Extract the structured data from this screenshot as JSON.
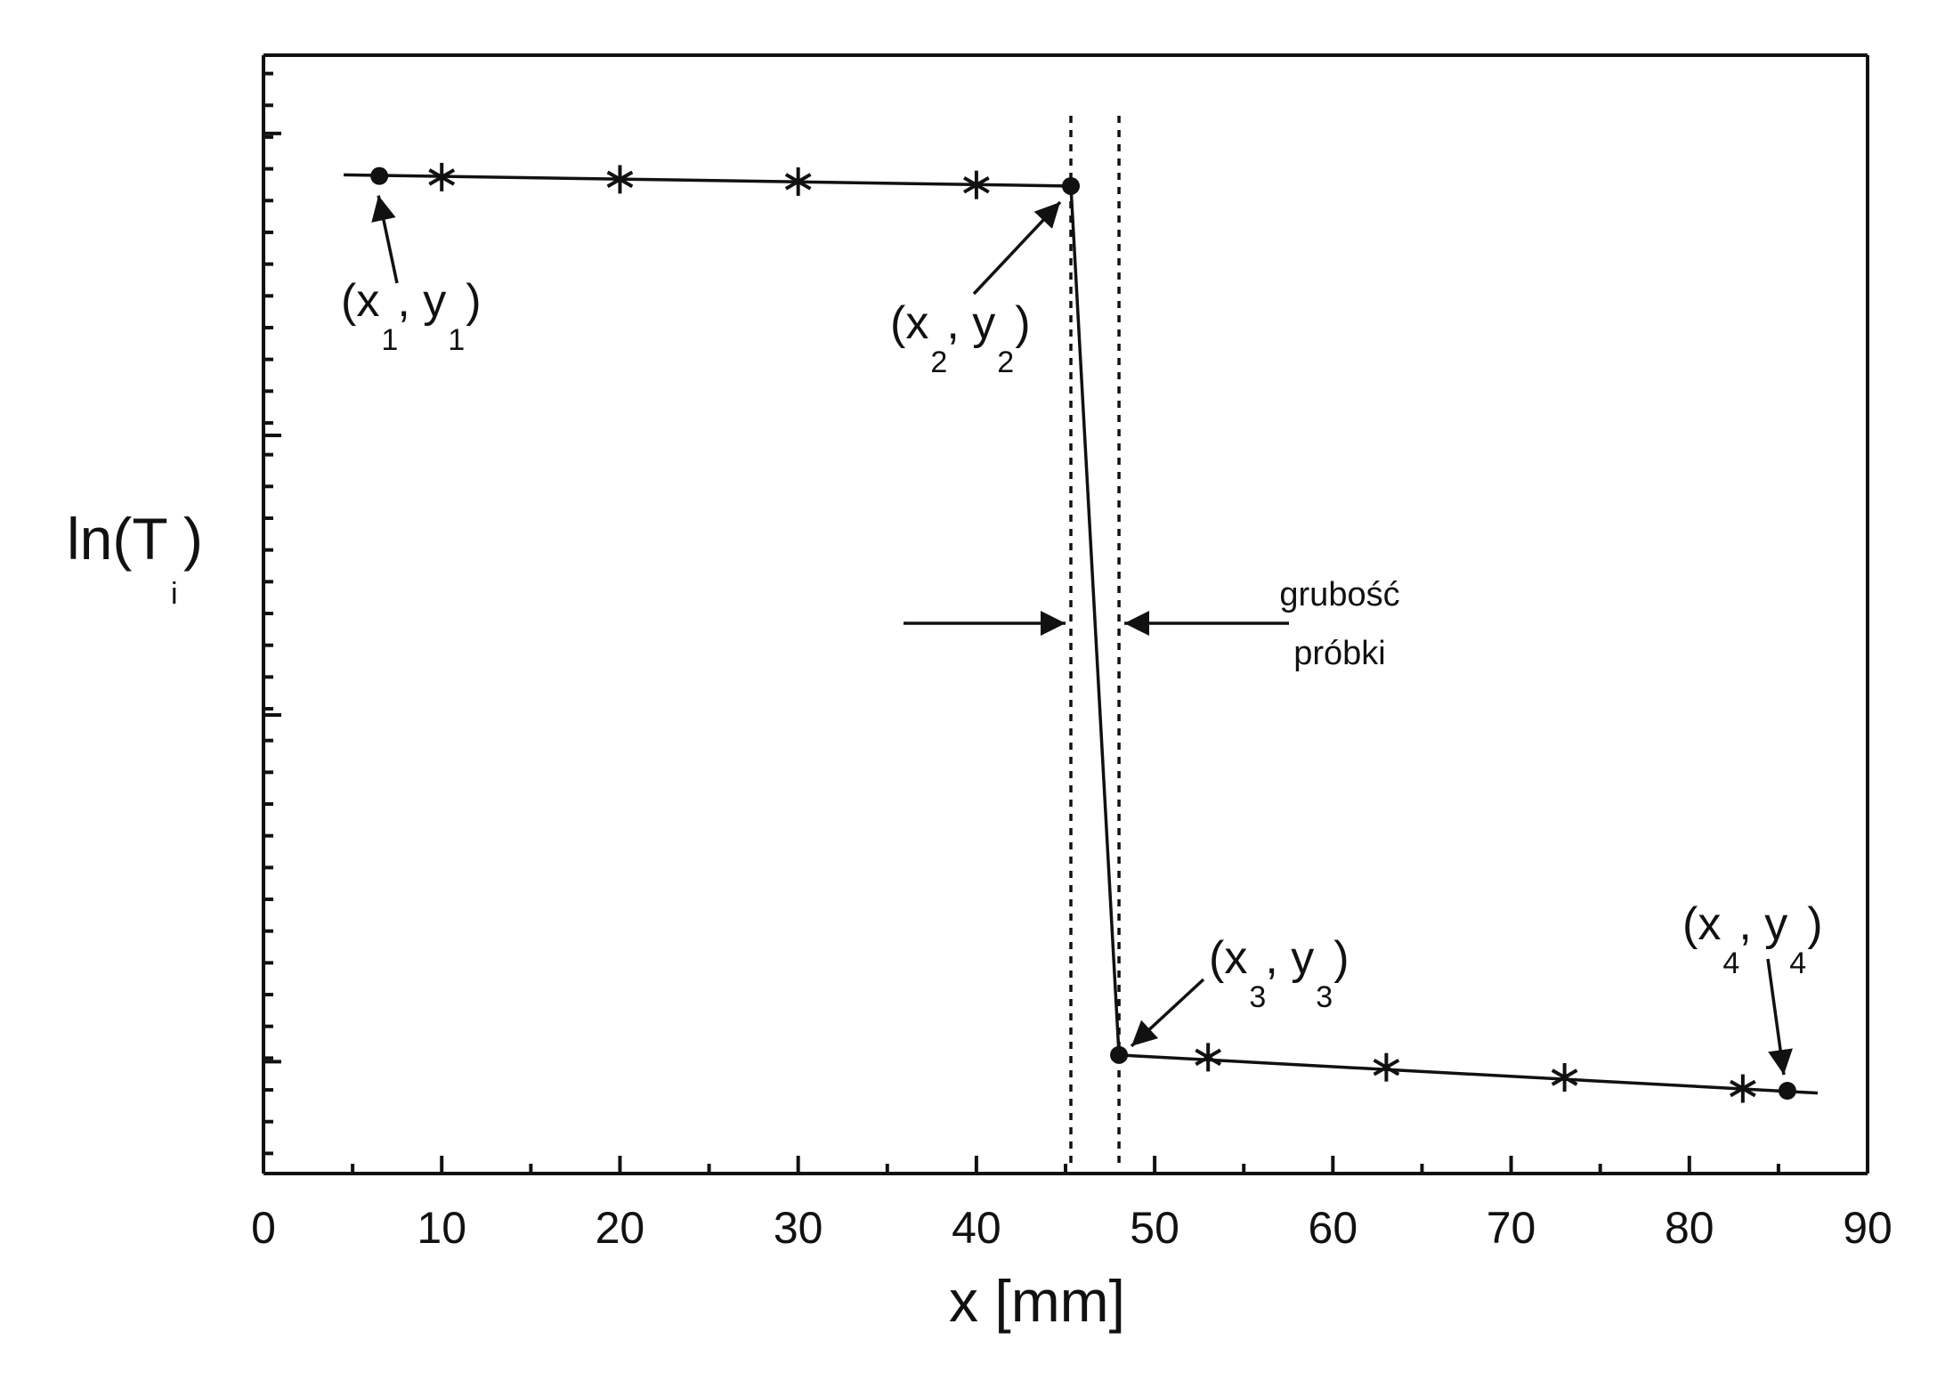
{
  "chart_data": {
    "type": "line",
    "title": "",
    "xlabel": "x [mm]",
    "ylabel": "ln(T",
    "ylabel_sub": "i",
    "ylabel_suffix": ")",
    "xlim": [
      0,
      90
    ],
    "ylim": [
      0,
      1
    ],
    "x_ticks": [
      "0",
      "10",
      "20",
      "30",
      "40",
      "50",
      "60",
      "70",
      "80",
      "90"
    ],
    "x_tick_values": [
      0,
      10,
      20,
      30,
      40,
      50,
      60,
      70,
      80,
      90
    ],
    "y_major_ticks": [
      0.1,
      0.41,
      0.66,
      0.93
    ],
    "grid": false,
    "legend": "none",
    "series": [
      {
        "line": [
          [
            4.5,
            0.893
          ],
          [
            45.3,
            0.883
          ],
          [
            48.0,
            0.106
          ],
          [
            87.2,
            0.072
          ]
        ],
        "marker_star": [
          [
            10.0,
            0.891
          ],
          [
            20.0,
            0.889
          ],
          [
            30.0,
            0.887
          ],
          [
            40.0,
            0.884
          ],
          [
            53.0,
            0.104
          ],
          [
            63.0,
            0.095
          ],
          [
            73.0,
            0.086
          ],
          [
            83.0,
            0.076
          ]
        ],
        "marker_dot": [
          [
            6.5,
            0.892
          ],
          [
            45.3,
            0.883
          ],
          [
            48.0,
            0.106
          ],
          [
            85.5,
            0.074
          ]
        ]
      }
    ],
    "dashed_verticals": [
      45.3,
      48.0
    ],
    "annotations": [
      {
        "main_open": "(x",
        "sub_a": "1",
        "main_mid": ", y",
        "sub_b": "1",
        "main_close": ")",
        "at": [
          6.5,
          0.892
        ]
      },
      {
        "main_open": "(x",
        "sub_a": "2",
        "main_mid": ", y",
        "sub_b": "2",
        "main_close": ")",
        "at": [
          45.3,
          0.883
        ]
      },
      {
        "main_open": "(x",
        "sub_a": "3",
        "main_mid": ", y",
        "sub_b": "3",
        "main_close": ")",
        "at": [
          48.0,
          0.106
        ]
      },
      {
        "main_open": "(x",
        "sub_a": "4",
        "main_mid": ", y",
        "sub_b": "4",
        "main_close": ")",
        "at": [
          85.5,
          0.074
        ]
      }
    ],
    "thickness_label_line1": "grubość",
    "thickness_label_line2": "próbki"
  }
}
